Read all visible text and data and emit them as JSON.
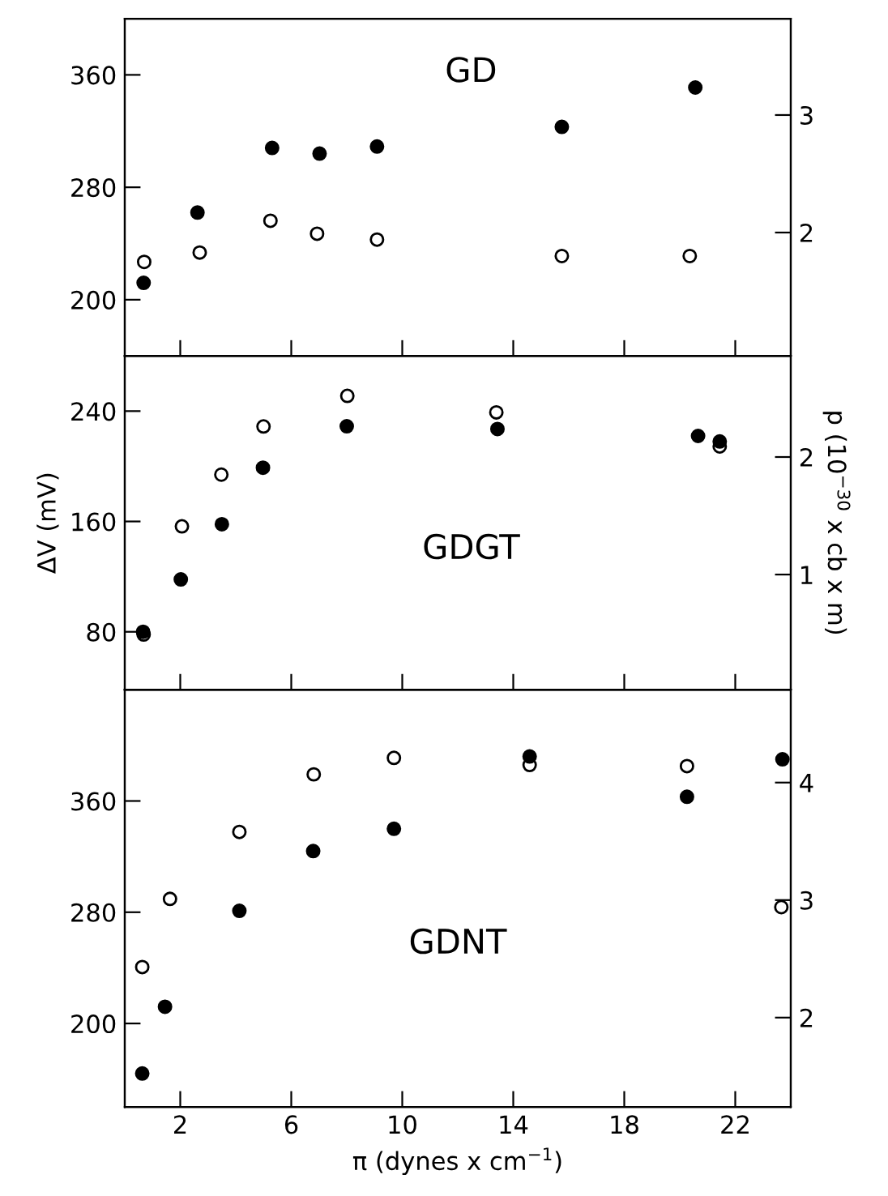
{
  "chart_data": [
    {
      "type": "scatter",
      "title": "GD",
      "xlim": [
        0,
        24
      ],
      "xticks": [
        2,
        6,
        10,
        14,
        18,
        22
      ],
      "ylim": [
        160,
        400
      ],
      "yticks": [
        200,
        280,
        360
      ],
      "y2lim": [
        0.95,
        3.82
      ],
      "y2ticks": [
        2,
        3
      ],
      "tick_labels": "y",
      "grid": false,
      "legend": false,
      "series": [
        {
          "color": "#000000",
          "marker": "circle",
          "x": [
            0.68,
            2.62,
            5.31,
            7.02,
            9.09,
            15.75,
            20.56
          ],
          "values": [
            212,
            262,
            308,
            304,
            309,
            323,
            351
          ]
        },
        {
          "color": "#000000",
          "marker": "open circle",
          "axis": "y2",
          "x": [
            0.7,
            2.7,
            5.25,
            6.93,
            9.09,
            15.75,
            20.36
          ],
          "values": [
            1.75,
            1.83,
            2.1,
            1.99,
            1.94,
            1.8,
            1.8
          ]
        }
      ]
    },
    {
      "type": "scatter",
      "title": "GDGT",
      "ylabel": "ΔV (mV)",
      "y2label": "p (10$^{−30}$ x cb x m)",
      "xlim": [
        0,
        24
      ],
      "xticks": [
        2,
        6,
        10,
        14,
        18,
        22
      ],
      "ylim": [
        38,
        280
      ],
      "yticks": [
        80,
        160,
        240
      ],
      "y2lim": [
        0.02,
        2.86
      ],
      "y2ticks": [
        1,
        2
      ],
      "tick_labels": "y",
      "grid": false,
      "legend": false,
      "series": [
        {
          "color": "#000000",
          "marker": "circle",
          "x": [
            0.66,
            2.02,
            3.5,
            4.98,
            8.0,
            13.43,
            20.66,
            21.44
          ],
          "values": [
            80,
            118,
            158,
            199,
            229,
            227,
            222,
            218
          ]
        },
        {
          "color": "#000000",
          "marker": "open circle",
          "axis": "y2",
          "x": [
            0.68,
            2.06,
            3.48,
            5.0,
            8.02,
            13.39,
            21.44
          ],
          "values": [
            0.49,
            1.41,
            1.85,
            2.26,
            2.52,
            2.38,
            2.09
          ]
        }
      ]
    },
    {
      "type": "scatter",
      "title": "GDNT",
      "xlabel": "π (dynes x cm$^{−1}$)",
      "xlim": [
        0,
        24
      ],
      "xticks": [
        2,
        6,
        10,
        14,
        18,
        22
      ],
      "ylim": [
        140,
        440
      ],
      "yticks": [
        200,
        280,
        360
      ],
      "y2lim": [
        1.24,
        4.79
      ],
      "y2ticks": [
        2,
        3,
        4
      ],
      "grid": false,
      "legend": false,
      "series": [
        {
          "color": "#000000",
          "marker": "circle",
          "x": [
            0.63,
            1.45,
            4.13,
            6.79,
            9.7,
            14.59,
            20.26,
            23.7
          ],
          "values": [
            164,
            212,
            281,
            324,
            340,
            392,
            363,
            390
          ]
        },
        {
          "color": "#000000",
          "marker": "open circle",
          "axis": "y2",
          "x": [
            0.63,
            1.63,
            4.13,
            6.81,
            9.7,
            14.59,
            20.26,
            23.66
          ],
          "values": [
            2.43,
            3.01,
            3.58,
            4.07,
            4.21,
            4.15,
            4.14,
            2.94
          ]
        }
      ]
    }
  ]
}
